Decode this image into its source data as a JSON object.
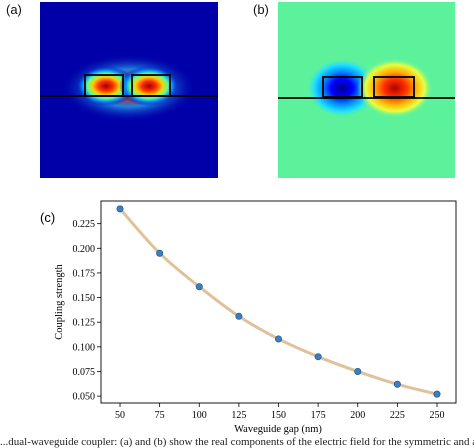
{
  "panels": {
    "a": {
      "label": "(a)",
      "colormap": "jet",
      "background_color": "#0000a8"
    },
    "b": {
      "label": "(b)",
      "colormap": "jet",
      "background_color": "#5cf29c"
    },
    "c": {
      "label": "(c)"
    }
  },
  "chart_data": {
    "type": "line",
    "title": "",
    "xlabel": "Waveguide gap (nm)",
    "ylabel": "Coupling strength",
    "x": [
      50,
      75,
      100,
      125,
      150,
      175,
      200,
      225,
      250
    ],
    "series": [
      {
        "values": [
          0.24,
          0.195,
          0.161,
          0.131,
          0.108,
          0.09,
          0.075,
          0.062,
          0.052
        ],
        "marker_color": "#3a7fc1",
        "line_color": "#e0c29a"
      }
    ],
    "xticks": [
      "50",
      "75",
      "100",
      "125",
      "150",
      "175",
      "200",
      "225",
      "250"
    ],
    "yticks": [
      "0.050",
      "0.075",
      "0.100",
      "0.125",
      "0.150",
      "0.175",
      "0.200",
      "0.225"
    ],
    "xlim": [
      38,
      262
    ],
    "ylim": [
      0.043,
      0.248
    ],
    "grid": false,
    "legend": "none"
  },
  "caption": "...dual-waveguide coupler: (a) and (b) show the real components of the electric field for the symmetric and anti-symmetric modes..."
}
